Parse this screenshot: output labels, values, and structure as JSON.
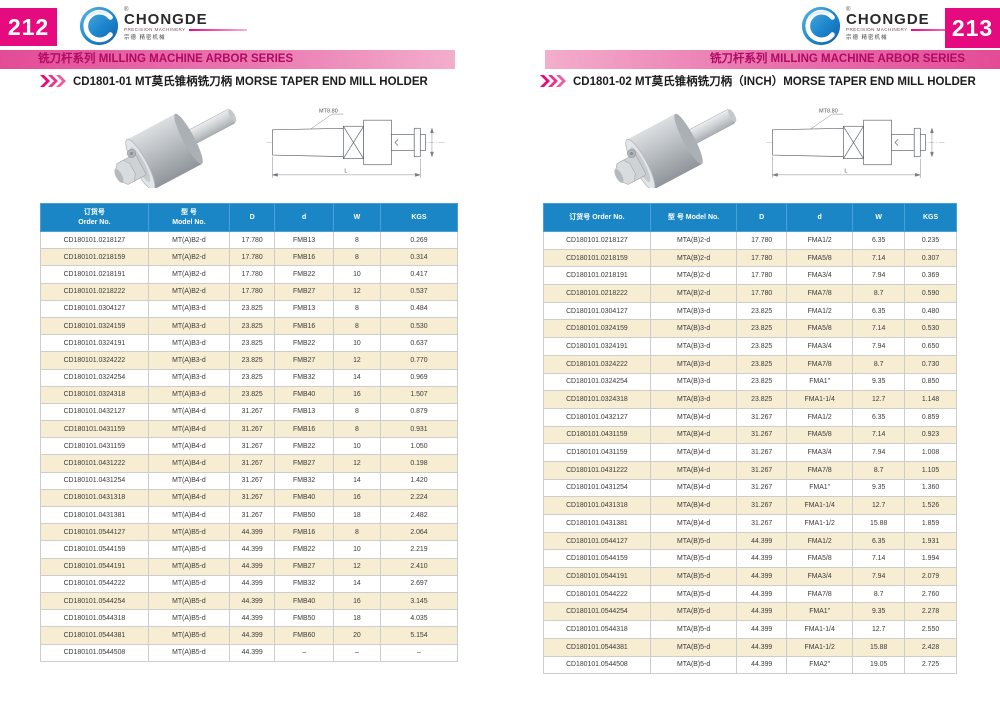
{
  "brand": {
    "name": "CHONGDE",
    "tagline": "PRECISION MACHINERY",
    "chinese": "宗德 精密机械",
    "registered_mark": "®"
  },
  "series_banner": "铣刀杆系列  MILLING MACHINE ARBOR SERIES",
  "drawing": {
    "taper_label": "MT8.80",
    "length_label": "L"
  },
  "colors": {
    "magenta": "#e50b7e",
    "banner_text": "#b00b63",
    "table_header_blue": "#1b86c6",
    "row_cream": "#f7edd2"
  },
  "pages": [
    {
      "page_number": "212",
      "product_title": "CD1801-01 MT莫氏锥柄铣刀柄 MORSE TAPER  END MILL HOLDER",
      "table": {
        "headers": [
          "订货号\nOrder No.",
          "型 号\nModel No.",
          "D",
          "d",
          "W",
          "KGS"
        ],
        "rows": [
          [
            "CD180101.0218127",
            "MT(A)B2-d",
            "17.780",
            "FMB13",
            "8",
            "0.269"
          ],
          [
            "CD180101.0218159",
            "MT(A)B2-d",
            "17.780",
            "FMB16",
            "8",
            "0.314"
          ],
          [
            "CD180101.0218191",
            "MT(A)B2-d",
            "17.780",
            "FMB22",
            "10",
            "0.417"
          ],
          [
            "CD180101.0218222",
            "MT(A)B2-d",
            "17.780",
            "FMB27",
            "12",
            "0.537"
          ],
          [
            "CD180101.0304127",
            "MT(A)B3-d",
            "23.825",
            "FMB13",
            "8",
            "0.484"
          ],
          [
            "CD180101.0324159",
            "MT(A)B3-d",
            "23.825",
            "FMB16",
            "8",
            "0.530"
          ],
          [
            "CD180101.0324191",
            "MT(A)B3-d",
            "23.825",
            "FMB22",
            "10",
            "0.637"
          ],
          [
            "CD180101.0324222",
            "MT(A)B3-d",
            "23.825",
            "FMB27",
            "12",
            "0.770"
          ],
          [
            "CD180101.0324254",
            "MT(A)B3-d",
            "23.825",
            "FMB32",
            "14",
            "0.969"
          ],
          [
            "CD180101.0324318",
            "MT(A)B3-d",
            "23.825",
            "FMB40",
            "16",
            "1.507"
          ],
          [
            "CD180101.0432127",
            "MT(A)B4-d",
            "31.267",
            "FMB13",
            "8",
            "0.879"
          ],
          [
            "CD180101.0431159",
            "MT(A)B4-d",
            "31.267",
            "FMB16",
            "8",
            "0.931"
          ],
          [
            "CD180101.0431159",
            "MT(A)B4-d",
            "31.267",
            "FMB22",
            "10",
            "1.050"
          ],
          [
            "CD180101.0431222",
            "MT(A)B4-d",
            "31.267",
            "FMB27",
            "12",
            "0.198"
          ],
          [
            "CD180101.0431254",
            "MT(A)B4-d",
            "31.267",
            "FMB32",
            "14",
            "1.420"
          ],
          [
            "CD180101.0431318",
            "MT(A)B4-d",
            "31.267",
            "FMB40",
            "16",
            "2.224"
          ],
          [
            "CD180101.0431381",
            "MT(A)B4-d",
            "31.267",
            "FMB50",
            "18",
            "2.482"
          ],
          [
            "CD180101.0544127",
            "MT(A)B5-d",
            "44.399",
            "FMB16",
            "8",
            "2.064"
          ],
          [
            "CD180101.0544159",
            "MT(A)B5-d",
            "44.399",
            "FMB22",
            "10",
            "2.219"
          ],
          [
            "CD180101.0544191",
            "MT(A)B5-d",
            "44.399",
            "FMB27",
            "12",
            "2.410"
          ],
          [
            "CD180101.0544222",
            "MT(A)B5-d",
            "44.399",
            "FMB32",
            "14",
            "2.697"
          ],
          [
            "CD180101.0544254",
            "MT(A)B5-d",
            "44.399",
            "FMB40",
            "16",
            "3.145"
          ],
          [
            "CD180101.0544318",
            "MT(A)B5-d",
            "44.399",
            "FMB50",
            "18",
            "4.035"
          ],
          [
            "CD180101.0544381",
            "MT(A)B5-d",
            "44.399",
            "FMB60",
            "20",
            "5.154"
          ],
          [
            "CD180101.0544508",
            "MT(A)B5-d",
            "44.399",
            "–",
            "–",
            "–"
          ]
        ]
      }
    },
    {
      "page_number": "213",
      "product_title": "CD1801-02 MT莫氏锥柄铣刀柄（INCH）MORSE TAPER  END MILL HOLDER",
      "table": {
        "headers": [
          "订货号  Order No.",
          "型 号  Model No.",
          "D",
          "d",
          "W",
          "KGS"
        ],
        "rows": [
          [
            "CD180101.0218127",
            "MTA(B)2-d",
            "17.780",
            "FMA1/2",
            "6.35",
            "0.235"
          ],
          [
            "CD180101.0218159",
            "MTA(B)2-d",
            "17.780",
            "FMA5/8",
            "7.14",
            "0.307"
          ],
          [
            "CD180101.0218191",
            "MTA(B)2-d",
            "17.780",
            "FMA3/4",
            "7.94",
            "0.369"
          ],
          [
            "CD180101.0218222",
            "MTA(B)2-d",
            "17.780",
            "FMA7/8",
            "8.7",
            "0.590"
          ],
          [
            "CD180101.0304127",
            "MTA(B)3-d",
            "23.825",
            "FMA1/2",
            "6.35",
            "0.480"
          ],
          [
            "CD180101.0324159",
            "MTA(B)3-d",
            "23.825",
            "FMA5/8",
            "7.14",
            "0.530"
          ],
          [
            "CD180101.0324191",
            "MTA(B)3-d",
            "23.825",
            "FMA3/4",
            "7.94",
            "0.650"
          ],
          [
            "CD180101.0324222",
            "MTA(B)3-d",
            "23.825",
            "FMA7/8",
            "8.7",
            "0.730"
          ],
          [
            "CD180101.0324254",
            "MTA(B)3-d",
            "23.825",
            "FMA1\"",
            "9.35",
            "0.850"
          ],
          [
            "CD180101.0324318",
            "MTA(B)3-d",
            "23.825",
            "FMA1-1/4",
            "12.7",
            "1.148"
          ],
          [
            "CD180101.0432127",
            "MTA(B)4-d",
            "31.267",
            "FMA1/2",
            "6.35",
            "0.859"
          ],
          [
            "CD180101.0431159",
            "MTA(B)4-d",
            "31.267",
            "FMA5/8",
            "7.14",
            "0.923"
          ],
          [
            "CD180101.0431159",
            "MTA(B)4-d",
            "31.267",
            "FMA3/4",
            "7.94",
            "1.008"
          ],
          [
            "CD180101.0431222",
            "MTA(B)4-d",
            "31.267",
            "FMA7/8",
            "8.7",
            "1.105"
          ],
          [
            "CD180101.0431254",
            "MTA(B)4-d",
            "31.267",
            "FMA1\"",
            "9.35",
            "1.360"
          ],
          [
            "CD180101.0431318",
            "MTA(B)4-d",
            "31.267",
            "FMA1-1/4",
            "12.7",
            "1.526"
          ],
          [
            "CD180101.0431381",
            "MTA(B)4-d",
            "31.267",
            "FMA1-1/2",
            "15.88",
            "1.859"
          ],
          [
            "CD180101.0544127",
            "MTA(B)5-d",
            "44.399",
            "FMA1/2",
            "6.35",
            "1.931"
          ],
          [
            "CD180101.0544159",
            "MTA(B)5-d",
            "44.399",
            "FMA5/8",
            "7.14",
            "1.994"
          ],
          [
            "CD180101.0544191",
            "MTA(B)5-d",
            "44.399",
            "FMA3/4",
            "7.94",
            "2.079"
          ],
          [
            "CD180101.0544222",
            "MTA(B)5-d",
            "44.399",
            "FMA7/8",
            "8.7",
            "2.760"
          ],
          [
            "CD180101.0544254",
            "MTA(B)5-d",
            "44.399",
            "FMA1\"",
            "9.35",
            "2.278"
          ],
          [
            "CD180101.0544318",
            "MTA(B)5-d",
            "44.399",
            "FMA1-1/4",
            "12.7",
            "2.550"
          ],
          [
            "CD180101.0544381",
            "MTA(B)5-d",
            "44.399",
            "FMA1-1/2",
            "15.88",
            "2.428"
          ],
          [
            "CD180101.0544508",
            "MTA(B)5-d",
            "44.399",
            "FMA2\"",
            "19.05",
            "2.725"
          ]
        ]
      }
    }
  ]
}
